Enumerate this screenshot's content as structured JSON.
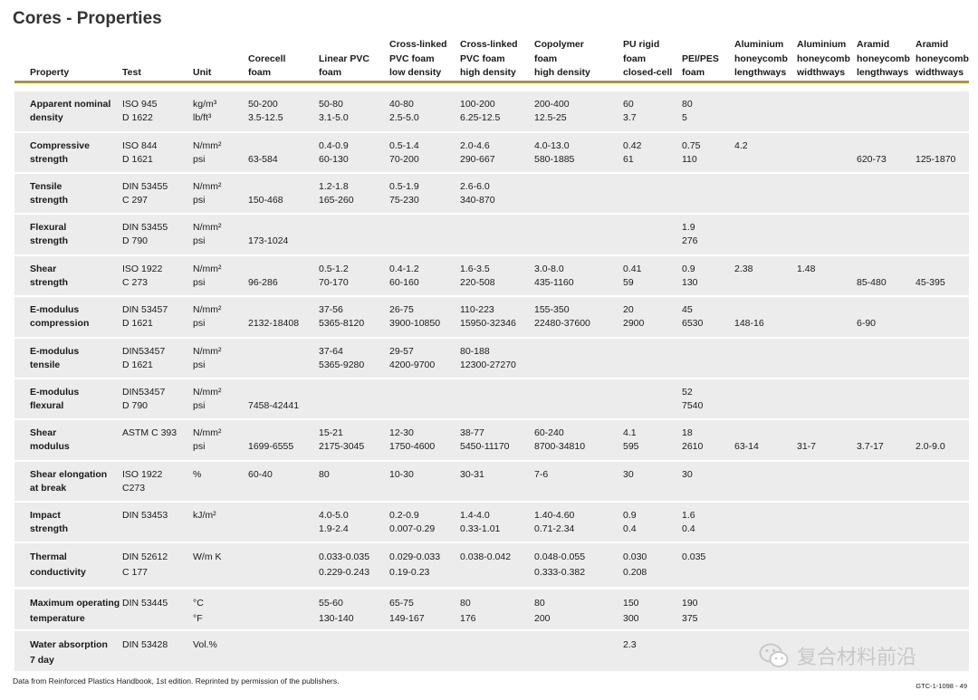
{
  "title": "Cores - Properties",
  "headers": [
    "Property",
    "Test",
    "Unit",
    "Corecell\nfoam",
    "Linear PVC\nfoam",
    "Cross-linked\nPVC foam\nlow density",
    "Cross-linked\nPVC foam\nhigh density",
    "Copolymer\nfoam\nhigh density",
    "PU rigid\nfoam\nclosed-cell",
    "PEI/PES\nfoam",
    "Aluminium\nhoneycomb\nlengthways",
    "Aluminium\nhoneycomb\nwidthways",
    "Aramid\nhoneycomb\nlengthways",
    "Aramid\nhoneycomb\nwidthways"
  ],
  "rows": [
    {
      "cells": [
        "Apparent nominal\ndensity",
        "ISO 945\nD 1622",
        "kg/m³\nlb/ft³",
        "50-200\n3.5-12.5",
        "50-80\n3.1-5.0",
        "40-80\n2.5-5.0",
        "100-200\n6.25-12.5",
        "200-400\n12.5-25",
        "60\n3.7",
        "80\n5",
        "",
        "",
        "",
        ""
      ]
    },
    {
      "cells": [
        "Compressive\nstrength",
        "ISO 844\nD 1621",
        "N/mm²\npsi",
        "\n63-584",
        "0.4-0.9\n60-130",
        "0.5-1.4\n70-200",
        "2.0-4.6\n290-667",
        "4.0-13.0\n580-1885",
        "0.42\n61",
        "0.75\n110",
        "4.2",
        "",
        "\n620-73",
        "\n125-1870"
      ]
    },
    {
      "cells": [
        "Tensile\nstrength",
        "DIN 53455\nC 297",
        "N/mm²\npsi",
        "\n150-468",
        "1.2-1.8\n165-260",
        "0.5-1.9\n75-230",
        "2.6-6.0\n340-870",
        "",
        "",
        "",
        "",
        "",
        "",
        ""
      ]
    },
    {
      "cells": [
        "Flexural\nstrength",
        "DIN 53455\nD 790",
        "N/mm²\npsi",
        "\n173-1024",
        "",
        "",
        "",
        "",
        "",
        "1.9\n276",
        "",
        "",
        "",
        ""
      ]
    },
    {
      "cells": [
        "Shear\nstrength",
        "ISO 1922\nC 273",
        "N/mm²\npsi",
        "\n96-286",
        "0.5-1.2\n70-170",
        "0.4-1.2\n60-160",
        "1.6-3.5\n220-508",
        "3.0-8.0\n435-1160",
        "0.41\n59",
        "0.9\n130",
        "2.38",
        "1.48",
        "\n85-480",
        "\n45-395"
      ]
    },
    {
      "cells": [
        "E-modulus\ncompression",
        "DIN 53457\nD 1621",
        "N/mm²\npsi",
        "\n2132-18408",
        "37-56\n5365-8120",
        "26-75\n3900-10850",
        "110-223\n15950-32346",
        "155-350\n22480-37600",
        "20\n2900",
        "45\n6530",
        "\n148-16",
        "",
        "\n6-90",
        ""
      ]
    },
    {
      "cells": [
        "E-modulus\ntensile",
        "DIN53457\nD 1621",
        "N/mm²\npsi",
        "",
        "37-64\n5365-9280",
        "29-57\n4200-9700",
        "80-188\n12300-27270",
        "",
        "",
        "",
        "",
        "",
        "",
        ""
      ]
    },
    {
      "cells": [
        "E-modulus\nflexural",
        "DIN53457\nD 790",
        "N/mm²\npsi",
        "\n7458-42441",
        "",
        "",
        "",
        "",
        "",
        "52\n7540",
        "",
        "",
        "",
        ""
      ]
    },
    {
      "cells": [
        "Shear\nmodulus",
        "ASTM C 393",
        "N/mm²\npsi",
        "\n1699-6555",
        "15-21\n2175-3045",
        "12-30\n1750-4600",
        "38-77\n5450-11170",
        "60-240\n8700-34810",
        "4.1\n595",
        "18\n2610",
        "\n63-14",
        "\n31-7",
        "\n3.7-17",
        "\n2.0-9.0"
      ]
    },
    {
      "cells": [
        "Shear elongation\nat break",
        "ISO 1922\nC273",
        "%",
        "60-40",
        "80",
        "10-30",
        "30-31",
        "7-6",
        "30",
        "30",
        "",
        "",
        "",
        ""
      ]
    },
    {
      "cells": [
        "Impact\nstrength",
        "DIN 53453",
        "kJ/m²",
        "",
        "4.0-5.0\n1.9-2.4",
        "0.2-0.9\n0.007-0.29",
        "1.4-4.0\n0.33-1.01",
        "1.40-4.60\n0.71-2.34",
        "0.9\n0.4",
        "1.6\n0.4",
        "",
        "",
        "",
        ""
      ]
    },
    {
      "cells": [
        "Thermal\nconductivity",
        "DIN 52612\nC 177",
        "W/m K",
        "",
        "0.033-0.035\n0.229-0.243",
        "0.029-0.033\n0.19-0.23",
        "0.038-0.042",
        "0.048-0.055\n0.333-0.382",
        "0.030\n0.208",
        "0.035",
        "",
        "",
        "",
        ""
      ]
    },
    {
      "cells": [
        "Maximum operating\ntemperature",
        "DIN 53445",
        "°C\n°F",
        "",
        "55-60\n130-140",
        "65-75\n149-167",
        "80\n176",
        "80\n200",
        "150\n300",
        "190\n375",
        "",
        "",
        "",
        ""
      ]
    },
    {
      "cells": [
        "Water absorption\n7 day",
        "DIN 53428",
        "Vol.%",
        "",
        "",
        "",
        "",
        "",
        "2.3",
        "",
        "",
        "",
        "",
        ""
      ]
    }
  ],
  "footnote": "Data from Reinforced Plastics Handbook, 1st edition.  Reprinted by permission of the publishers.",
  "code": "GTC-1-1098 - 49",
  "watermark": "复合材料前沿",
  "colors": {
    "accent": "#a69a3b",
    "band": "#ececec",
    "title": "#333333"
  }
}
